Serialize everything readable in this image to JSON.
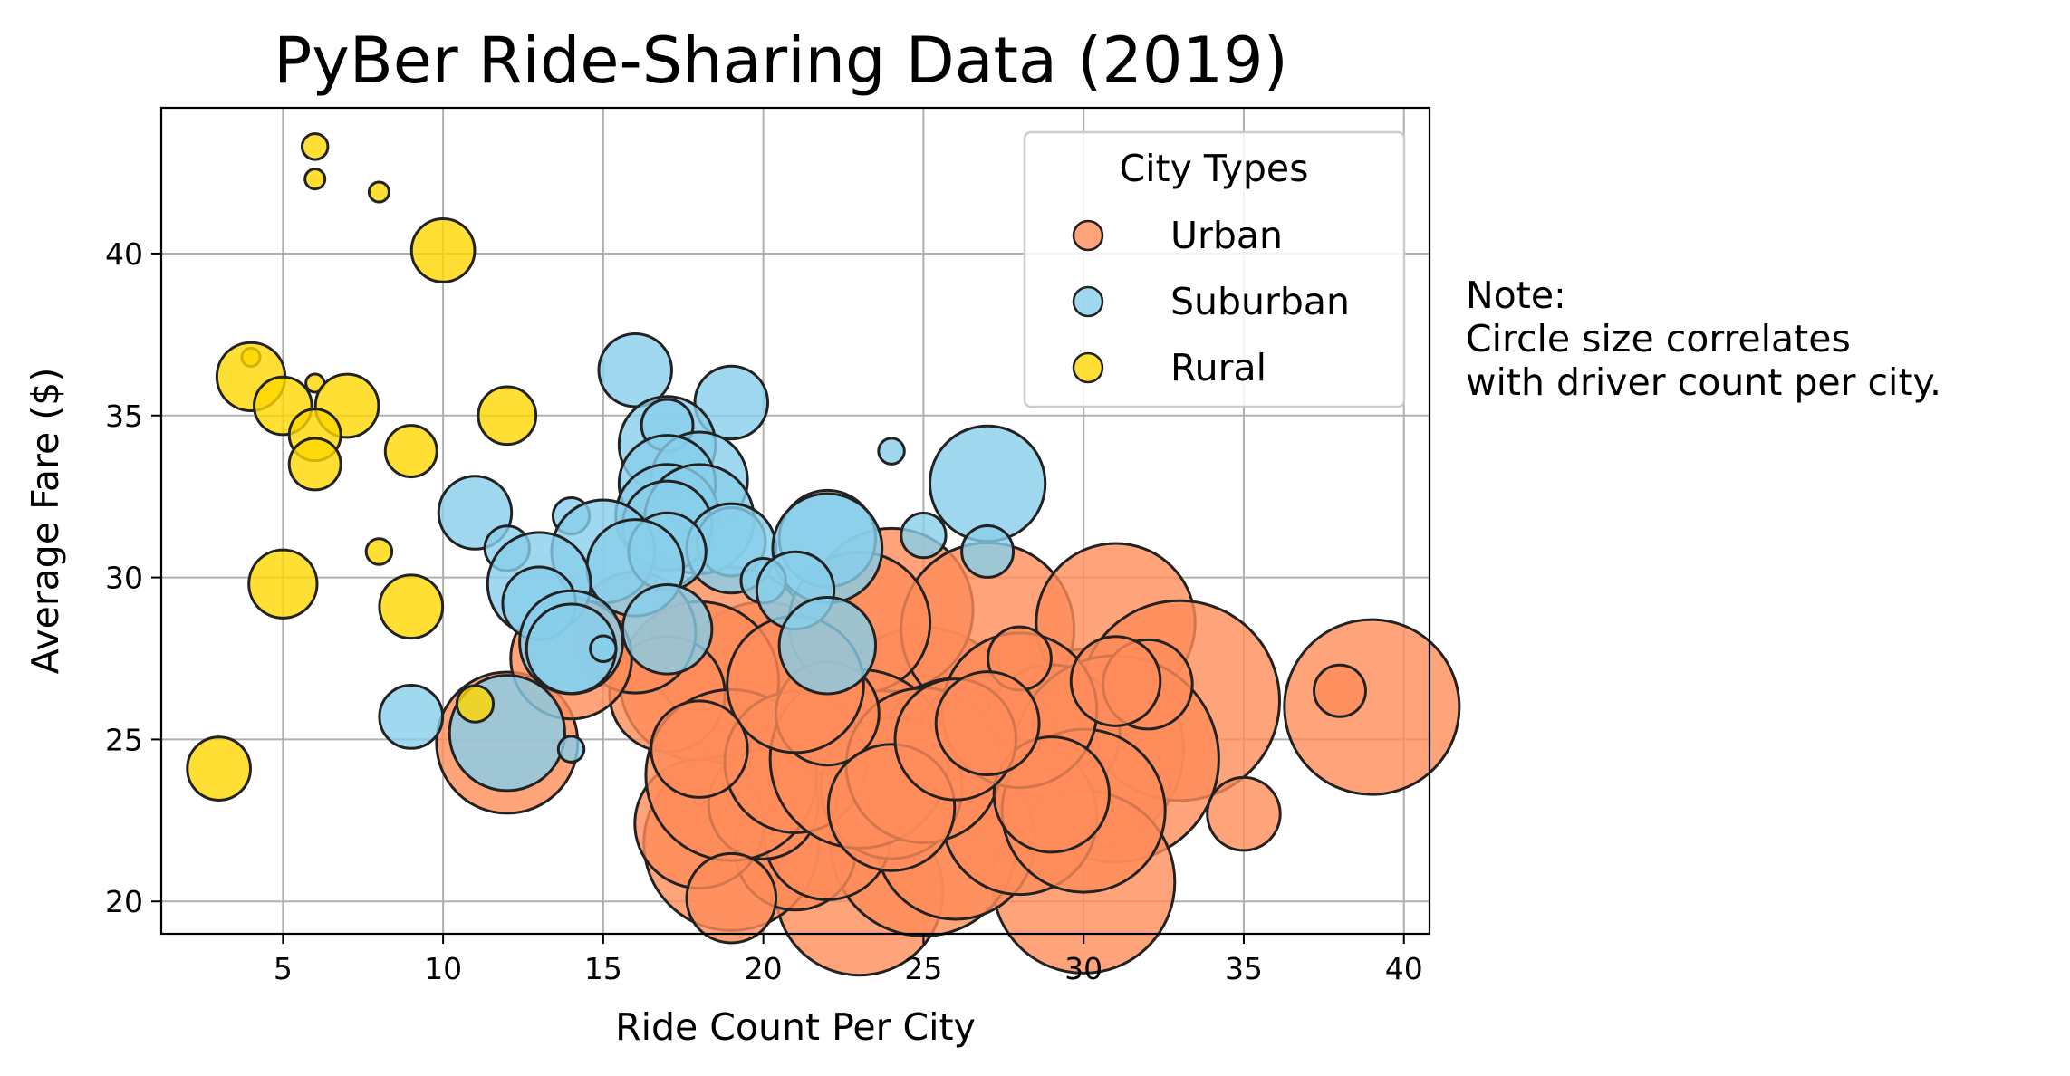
{
  "chart_data": {
    "type": "scatter",
    "title": "PyBer Ride-Sharing Data (2019)",
    "xlabel": "Ride Count Per City",
    "ylabel": "Average Fare ($)",
    "xlim": [
      1.2,
      40.8
    ],
    "ylim": [
      19,
      44.5
    ],
    "xticks": [
      5,
      10,
      15,
      20,
      25,
      30,
      35,
      40
    ],
    "yticks": [
      20,
      25,
      30,
      35,
      40
    ],
    "grid": true,
    "legend": {
      "title": "City Types",
      "placement": "top-right"
    },
    "size_note": "marker size scales with driver count per city",
    "series": [
      {
        "name": "Urban",
        "color": "#ff8c5a",
        "points": [
          {
            "x": 28,
            "y": 24.6,
            "drivers": 34
          },
          {
            "x": 22,
            "y": 24.1,
            "drivers": 45
          },
          {
            "x": 30,
            "y": 24.7,
            "drivers": 60
          },
          {
            "x": 25,
            "y": 25.6,
            "drivers": 52
          },
          {
            "x": 24,
            "y": 29.0,
            "drivers": 40
          },
          {
            "x": 27,
            "y": 28.4,
            "drivers": 45
          },
          {
            "x": 31,
            "y": 28.6,
            "drivers": 38
          },
          {
            "x": 33,
            "y": 26.2,
            "drivers": 60
          },
          {
            "x": 39,
            "y": 26.0,
            "drivers": 46
          },
          {
            "x": 20,
            "y": 26.6,
            "drivers": 44
          },
          {
            "x": 19,
            "y": 27.8,
            "drivers": 40
          },
          {
            "x": 18,
            "y": 26.8,
            "drivers": 38
          },
          {
            "x": 17,
            "y": 26.4,
            "drivers": 20
          },
          {
            "x": 16,
            "y": 28.3,
            "drivers": 22
          },
          {
            "x": 23,
            "y": 28.6,
            "drivers": 30
          },
          {
            "x": 26,
            "y": 24.5,
            "drivers": 36
          },
          {
            "x": 27,
            "y": 24.8,
            "drivers": 30
          },
          {
            "x": 29,
            "y": 25.2,
            "drivers": 28
          },
          {
            "x": 31,
            "y": 24.4,
            "drivers": 64
          },
          {
            "x": 30,
            "y": 20.6,
            "drivers": 50
          },
          {
            "x": 23,
            "y": 20.3,
            "drivers": 42
          },
          {
            "x": 25,
            "y": 21.8,
            "drivers": 52
          },
          {
            "x": 26,
            "y": 21.9,
            "drivers": 38
          },
          {
            "x": 19,
            "y": 21.8,
            "drivers": 46
          },
          {
            "x": 21,
            "y": 21.6,
            "drivers": 22
          },
          {
            "x": 22,
            "y": 22.0,
            "drivers": 24
          },
          {
            "x": 18,
            "y": 22.4,
            "drivers": 25
          },
          {
            "x": 28,
            "y": 22.6,
            "drivers": 36
          },
          {
            "x": 30,
            "y": 22.8,
            "drivers": 40
          },
          {
            "x": 35,
            "y": 22.7,
            "drivers": 8
          },
          {
            "x": 24,
            "y": 23.5,
            "drivers": 30
          },
          {
            "x": 20,
            "y": 23.0,
            "drivers": 18
          },
          {
            "x": 19,
            "y": 23.9,
            "drivers": 44
          },
          {
            "x": 21,
            "y": 24.3,
            "drivers": 30
          },
          {
            "x": 23,
            "y": 24.4,
            "drivers": 48
          },
          {
            "x": 25,
            "y": 24.2,
            "drivers": 36
          },
          {
            "x": 28,
            "y": 25.9,
            "drivers": 36
          },
          {
            "x": 32,
            "y": 26.7,
            "drivers": 12
          },
          {
            "x": 28,
            "y": 27.5,
            "drivers": 6
          },
          {
            "x": 38,
            "y": 26.5,
            "drivers": 4
          },
          {
            "x": 12,
            "y": 24.9,
            "drivers": 30
          },
          {
            "x": 14,
            "y": 27.5,
            "drivers": 22
          },
          {
            "x": 19,
            "y": 20.1,
            "drivers": 12
          },
          {
            "x": 22,
            "y": 25.8,
            "drivers": 16
          },
          {
            "x": 24,
            "y": 22.9,
            "drivers": 24
          },
          {
            "x": 29,
            "y": 23.3,
            "drivers": 20
          },
          {
            "x": 21,
            "y": 26.7,
            "drivers": 28
          },
          {
            "x": 26,
            "y": 25.0,
            "drivers": 22
          },
          {
            "x": 18,
            "y": 24.7,
            "drivers": 14
          },
          {
            "x": 31,
            "y": 26.8,
            "drivers": 12
          },
          {
            "x": 27,
            "y": 25.5,
            "drivers": 16
          }
        ]
      },
      {
        "name": "Suburban",
        "color": "#87ceeb",
        "points": [
          {
            "x": 16,
            "y": 36.4,
            "drivers": 8
          },
          {
            "x": 19,
            "y": 35.4,
            "drivers": 8
          },
          {
            "x": 17,
            "y": 34.1,
            "drivers": 14
          },
          {
            "x": 17,
            "y": 34.7,
            "drivers": 4
          },
          {
            "x": 24,
            "y": 33.9,
            "drivers": 1
          },
          {
            "x": 18,
            "y": 33.0,
            "drivers": 14
          },
          {
            "x": 17,
            "y": 32.9,
            "drivers": 14
          },
          {
            "x": 27,
            "y": 32.9,
            "drivers": 20
          },
          {
            "x": 11,
            "y": 32.0,
            "drivers": 8
          },
          {
            "x": 17,
            "y": 31.9,
            "drivers": 16
          },
          {
            "x": 18,
            "y": 31.8,
            "drivers": 18
          },
          {
            "x": 17,
            "y": 31.6,
            "drivers": 12
          },
          {
            "x": 14,
            "y": 31.9,
            "drivers": 2
          },
          {
            "x": 22,
            "y": 31.2,
            "drivers": 14
          },
          {
            "x": 25,
            "y": 31.3,
            "drivers": 3
          },
          {
            "x": 19,
            "y": 31.1,
            "drivers": 7
          },
          {
            "x": 19,
            "y": 30.9,
            "drivers": 12
          },
          {
            "x": 22,
            "y": 30.9,
            "drivers": 18
          },
          {
            "x": 15,
            "y": 30.8,
            "drivers": 16
          },
          {
            "x": 17,
            "y": 30.8,
            "drivers": 9
          },
          {
            "x": 12,
            "y": 30.9,
            "drivers": 3
          },
          {
            "x": 27,
            "y": 30.8,
            "drivers": 4
          },
          {
            "x": 16,
            "y": 30.3,
            "drivers": 14
          },
          {
            "x": 13,
            "y": 29.8,
            "drivers": 16
          },
          {
            "x": 20,
            "y": 29.9,
            "drivers": 3
          },
          {
            "x": 21,
            "y": 29.6,
            "drivers": 9
          },
          {
            "x": 13,
            "y": 29.2,
            "drivers": 8
          },
          {
            "x": 17,
            "y": 28.4,
            "drivers": 12
          },
          {
            "x": 22,
            "y": 27.9,
            "drivers": 14
          },
          {
            "x": 14,
            "y": 28.0,
            "drivers": 16
          },
          {
            "x": 14,
            "y": 27.8,
            "drivers": 12
          },
          {
            "x": 15,
            "y": 27.8,
            "drivers": 1
          },
          {
            "x": 9,
            "y": 25.7,
            "drivers": 6
          },
          {
            "x": 12,
            "y": 25.2,
            "drivers": 20
          },
          {
            "x": 14,
            "y": 24.7,
            "drivers": 1
          }
        ]
      },
      {
        "name": "Rural",
        "color": "#ffd700",
        "points": [
          {
            "x": 6,
            "y": 43.3,
            "drivers": 1
          },
          {
            "x": 6,
            "y": 42.3,
            "drivers": 0.6
          },
          {
            "x": 8,
            "y": 41.9,
            "drivers": 0.6
          },
          {
            "x": 10,
            "y": 40.1,
            "drivers": 6
          },
          {
            "x": 4,
            "y": 36.8,
            "drivers": 0.5
          },
          {
            "x": 4,
            "y": 36.2,
            "drivers": 7
          },
          {
            "x": 6,
            "y": 36.0,
            "drivers": 0.5
          },
          {
            "x": 5,
            "y": 35.3,
            "drivers": 5
          },
          {
            "x": 7,
            "y": 35.3,
            "drivers": 6
          },
          {
            "x": 12,
            "y": 35.0,
            "drivers": 5
          },
          {
            "x": 6,
            "y": 34.4,
            "drivers": 4
          },
          {
            "x": 9,
            "y": 33.9,
            "drivers": 4
          },
          {
            "x": 6,
            "y": 33.5,
            "drivers": 4
          },
          {
            "x": 8,
            "y": 30.8,
            "drivers": 1
          },
          {
            "x": 5,
            "y": 29.8,
            "drivers": 7
          },
          {
            "x": 9,
            "y": 29.1,
            "drivers": 6
          },
          {
            "x": 11,
            "y": 26.1,
            "drivers": 2
          },
          {
            "x": 3,
            "y": 24.1,
            "drivers": 6
          }
        ]
      }
    ]
  },
  "note": {
    "line1": "Note:",
    "line2": "Circle size correlates",
    "line3": "with driver count per city."
  }
}
